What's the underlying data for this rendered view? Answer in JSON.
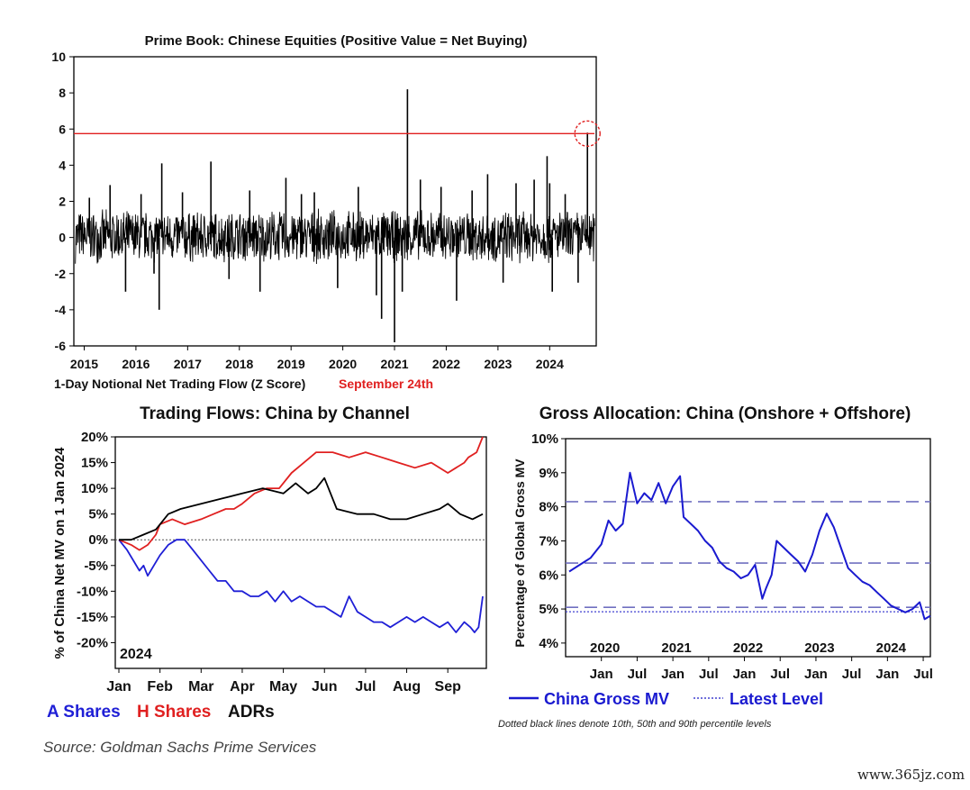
{
  "source": "Source: Goldman Sachs Prime Services",
  "watermark": "www.365jz.com",
  "colors": {
    "line": "#000000",
    "threshold": "#e02020",
    "a_shares": "#1f1fd6",
    "h_shares": "#e02020",
    "adrs": "#000000",
    "china_gross": "#1a1ad0",
    "guide": "#7070c0"
  },
  "chart_data": [
    {
      "type": "line",
      "title": "Prime Book: Chinese Equities (Positive Value = Net Buying)",
      "xlabel": "1-Day Notional Net Trading Flow (Z Score)",
      "annotation": "September 24th",
      "x_ticks": [
        "2015",
        "2016",
        "2017",
        "2018",
        "2019",
        "2020",
        "2021",
        "2022",
        "2023",
        "2024"
      ],
      "y_ticks": [
        10,
        8,
        6,
        4,
        2,
        0,
        -2,
        -4,
        -6
      ],
      "ylim": [
        -6,
        10
      ],
      "xlim": [
        2014.8,
        2024.9
      ],
      "threshold_value": 5.75,
      "noise_band": [
        -1.5,
        1.6
      ],
      "spikes": [
        {
          "x": 2015.1,
          "y": 2.2
        },
        {
          "x": 2015.5,
          "y": 2.9
        },
        {
          "x": 2015.8,
          "y": -3.0
        },
        {
          "x": 2016.1,
          "y": 2.4
        },
        {
          "x": 2016.35,
          "y": -2.0
        },
        {
          "x": 2016.45,
          "y": -4.0
        },
        {
          "x": 2016.5,
          "y": 4.1
        },
        {
          "x": 2016.9,
          "y": 2.5
        },
        {
          "x": 2017.45,
          "y": 4.2
        },
        {
          "x": 2017.8,
          "y": -2.3
        },
        {
          "x": 2018.2,
          "y": 2.6
        },
        {
          "x": 2018.4,
          "y": -3.0
        },
        {
          "x": 2018.9,
          "y": 3.3
        },
        {
          "x": 2019.2,
          "y": 2.4
        },
        {
          "x": 2019.45,
          "y": 2.5
        },
        {
          "x": 2019.9,
          "y": -2.8
        },
        {
          "x": 2020.3,
          "y": 2.8
        },
        {
          "x": 2020.65,
          "y": -3.2
        },
        {
          "x": 2020.75,
          "y": -4.5
        },
        {
          "x": 2021.0,
          "y": -5.8
        },
        {
          "x": 2021.25,
          "y": 8.2
        },
        {
          "x": 2021.15,
          "y": -3.0
        },
        {
          "x": 2021.5,
          "y": 3.2
        },
        {
          "x": 2021.9,
          "y": 2.8
        },
        {
          "x": 2022.2,
          "y": -3.5
        },
        {
          "x": 2022.5,
          "y": 2.6
        },
        {
          "x": 2022.8,
          "y": 3.5
        },
        {
          "x": 2023.1,
          "y": -2.5
        },
        {
          "x": 2023.35,
          "y": 3.0
        },
        {
          "x": 2023.7,
          "y": 3.2
        },
        {
          "x": 2023.95,
          "y": 4.5
        },
        {
          "x": 2024.0,
          "y": 3.0
        },
        {
          "x": 2024.3,
          "y": 2.4
        },
        {
          "x": 2024.05,
          "y": -3.0
        },
        {
          "x": 2024.55,
          "y": -2.5
        },
        {
          "x": 2024.73,
          "y": 5.8
        }
      ]
    },
    {
      "type": "line",
      "title": "Trading Flows: China by Channel",
      "ylabel": "% of China Net MV on 1 Jan 2024",
      "inset_label": "2024",
      "x_ticks": [
        "Jan",
        "Feb",
        "Mar",
        "Apr",
        "May",
        "Jun",
        "Jul",
        "Aug",
        "Sep"
      ],
      "y_ticks": [
        "20%",
        "15%",
        "10%",
        "5%",
        "0%",
        "-5%",
        "-10%",
        "-15%",
        "-20%"
      ],
      "ylim": [
        -25,
        20
      ],
      "xlim": [
        0,
        8.85
      ],
      "series": [
        {
          "name": "A Shares",
          "color": "#1f1fd6",
          "x": [
            0,
            0.2,
            0.35,
            0.5,
            0.6,
            0.7,
            0.85,
            1.0,
            1.2,
            1.4,
            1.6,
            1.8,
            2.0,
            2.2,
            2.4,
            2.6,
            2.8,
            3.0,
            3.2,
            3.4,
            3.6,
            3.8,
            4.0,
            4.2,
            4.4,
            4.6,
            4.8,
            5.0,
            5.2,
            5.4,
            5.6,
            5.8,
            6.0,
            6.2,
            6.4,
            6.6,
            6.8,
            7.0,
            7.2,
            7.4,
            7.6,
            7.8,
            8.0,
            8.2,
            8.4,
            8.55,
            8.65,
            8.75,
            8.85
          ],
          "y": [
            0,
            -2,
            -4,
            -6,
            -5,
            -7,
            -5,
            -3,
            -1,
            0,
            0,
            -2,
            -4,
            -6,
            -8,
            -8,
            -10,
            -10,
            -11,
            -11,
            -10,
            -12,
            -10,
            -12,
            -11,
            -12,
            -13,
            -13,
            -14,
            -15,
            -11,
            -14,
            -15,
            -16,
            -16,
            -17,
            -16,
            -15,
            -16,
            -15,
            -16,
            -17,
            -16,
            -18,
            -16,
            -17,
            -18,
            -17,
            -11
          ]
        },
        {
          "name": "H Shares",
          "color": "#e02020",
          "x": [
            0,
            0.3,
            0.5,
            0.7,
            0.9,
            1.0,
            1.3,
            1.6,
            2.0,
            2.3,
            2.6,
            2.8,
            3.0,
            3.3,
            3.6,
            3.9,
            4.2,
            4.5,
            4.8,
            5.2,
            5.6,
            6.0,
            6.4,
            6.8,
            7.2,
            7.6,
            8.0,
            8.2,
            8.4,
            8.5,
            8.7,
            8.85
          ],
          "y": [
            0,
            -1,
            -2,
            -1,
            1,
            3,
            4,
            3,
            4,
            5,
            6,
            6,
            7,
            9,
            10,
            10,
            13,
            15,
            17,
            17,
            16,
            17,
            16,
            15,
            14,
            15,
            13,
            14,
            15,
            16,
            17,
            20
          ]
        },
        {
          "name": "ADRs",
          "color": "#000000",
          "x": [
            0,
            0.3,
            0.6,
            0.9,
            1.2,
            1.5,
            2.0,
            2.5,
            3.0,
            3.5,
            4.0,
            4.3,
            4.6,
            4.8,
            5.0,
            5.3,
            5.8,
            6.2,
            6.6,
            7.0,
            7.4,
            7.8,
            8.0,
            8.3,
            8.6,
            8.85
          ],
          "y": [
            0,
            0,
            1,
            2,
            5,
            6,
            7,
            8,
            9,
            10,
            9,
            11,
            9,
            10,
            12,
            6,
            5,
            5,
            4,
            4,
            5,
            6,
            7,
            5,
            4,
            5
          ]
        }
      ]
    },
    {
      "type": "line",
      "title": "Gross Allocation: China (Onshore + Offshore)",
      "ylabel": "Percentage of Global Gross MV",
      "note": "Dotted black lines denote 10th, 50th and 90th percentile levels",
      "years": [
        "2020",
        "2021",
        "2022",
        "2023",
        "2024"
      ],
      "x_ticks": [
        "Jan",
        "Jul",
        "Jan",
        "Jul",
        "Jan",
        "Jul",
        "Jan",
        "Jul",
        "Jan",
        "Jul"
      ],
      "y_ticks": [
        "10%",
        "9%",
        "8%",
        "7%",
        "6%",
        "5%",
        "4%"
      ],
      "ylim": [
        3.6,
        10
      ],
      "xlim": [
        2019.5,
        2024.6
      ],
      "percentile_levels": [
        8.15,
        6.35,
        5.05
      ],
      "latest_level": 4.92,
      "series": [
        {
          "name": "China Gross MV",
          "color": "#1a1ad0",
          "x": [
            2019.55,
            2019.7,
            2019.85,
            2020.0,
            2020.1,
            2020.2,
            2020.3,
            2020.4,
            2020.5,
            2020.6,
            2020.7,
            2020.8,
            2020.9,
            2021.0,
            2021.1,
            2021.15,
            2021.25,
            2021.35,
            2021.45,
            2021.55,
            2021.65,
            2021.75,
            2021.85,
            2021.95,
            2022.05,
            2022.15,
            2022.25,
            2022.3,
            2022.38,
            2022.45,
            2022.55,
            2022.65,
            2022.75,
            2022.85,
            2022.95,
            2023.05,
            2023.15,
            2023.25,
            2023.35,
            2023.45,
            2023.55,
            2023.65,
            2023.75,
            2023.85,
            2023.95,
            2024.05,
            2024.15,
            2024.25,
            2024.35,
            2024.45,
            2024.52,
            2024.6
          ],
          "y": [
            6.1,
            6.3,
            6.5,
            6.9,
            7.6,
            7.3,
            7.5,
            9.0,
            8.1,
            8.4,
            8.2,
            8.7,
            8.1,
            8.6,
            8.9,
            7.7,
            7.5,
            7.3,
            7.0,
            6.8,
            6.4,
            6.2,
            6.1,
            5.9,
            6.0,
            6.3,
            5.3,
            5.6,
            6.0,
            7.0,
            6.8,
            6.6,
            6.4,
            6.1,
            6.6,
            7.3,
            7.8,
            7.4,
            6.8,
            6.2,
            6.0,
            5.8,
            5.7,
            5.5,
            5.3,
            5.1,
            5.0,
            4.9,
            5.0,
            5.2,
            4.7,
            4.8
          ]
        }
      ]
    }
  ]
}
